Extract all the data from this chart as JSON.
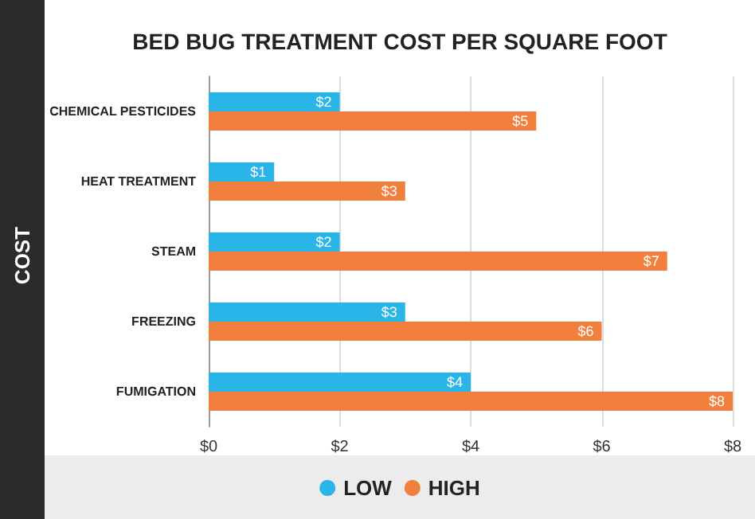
{
  "chart_data": {
    "type": "bar",
    "orientation": "horizontal",
    "title": "BED BUG TREATMENT COST PER SQUARE FOOT",
    "ylabel": "COST",
    "categories": [
      "CHEMICAL PESTICIDES",
      "HEAT TREATMENT",
      "STEAM",
      "FREEZING",
      "FUMIGATION"
    ],
    "series": [
      {
        "name": "LOW",
        "color": "#29b5e8",
        "values": [
          2,
          1,
          2,
          3,
          4
        ],
        "value_labels": [
          "$2",
          "$1",
          "$2",
          "$3",
          "$4"
        ]
      },
      {
        "name": "HIGH",
        "color": "#f0803c",
        "values": [
          5,
          3,
          7,
          6,
          8
        ],
        "value_labels": [
          "$5",
          "$3",
          "$7",
          "$6",
          "$8"
        ]
      }
    ],
    "xlim": [
      0,
      8
    ],
    "xticks": [
      {
        "value": 0,
        "label": "$0"
      },
      {
        "value": 2,
        "label": "$2"
      },
      {
        "value": 4,
        "label": "$4"
      },
      {
        "value": 6,
        "label": "$6"
      },
      {
        "value": 8,
        "label": "$8"
      }
    ],
    "grid": "x",
    "legend": "bottom"
  }
}
